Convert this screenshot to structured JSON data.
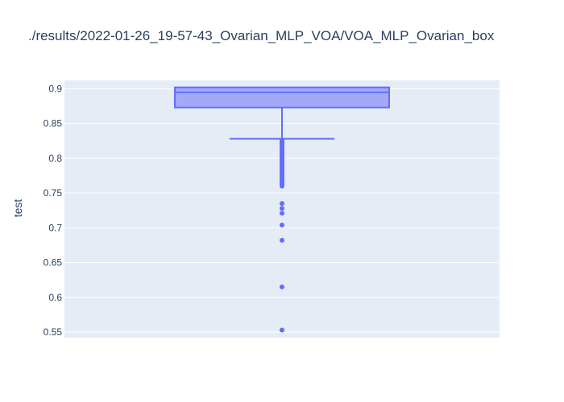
{
  "chart_data": {
    "type": "box",
    "title": "./results/2022-01-26_19-57-43_Ovarian_MLP_VOA/VOA_MLP_Ovarian_box",
    "xlabel": "",
    "ylabel": "test",
    "ylim": [
      0.542,
      0.912
    ],
    "y_ticks": [
      "0.55",
      "0.6",
      "0.65",
      "0.7",
      "0.75",
      "0.8",
      "0.85",
      "0.9"
    ],
    "grid": true,
    "colors": {
      "plot_bg": "#E5ECF6",
      "box_fill": "#A3A9F7",
      "box_line": "#636EFA",
      "grid": "#ffffff"
    },
    "box": {
      "q1": 0.873,
      "median": 0.895,
      "q3": 0.902,
      "lower_fence": 0.828,
      "upper_fence": 0.902
    },
    "outliers": [
      0.826,
      0.824,
      0.822,
      0.82,
      0.818,
      0.816,
      0.814,
      0.812,
      0.81,
      0.808,
      0.806,
      0.804,
      0.802,
      0.8,
      0.798,
      0.796,
      0.794,
      0.792,
      0.79,
      0.788,
      0.786,
      0.784,
      0.782,
      0.78,
      0.778,
      0.776,
      0.774,
      0.772,
      0.77,
      0.768,
      0.766,
      0.764,
      0.762,
      0.76,
      0.735,
      0.728,
      0.721,
      0.704,
      0.682,
      0.615,
      0.553
    ]
  }
}
